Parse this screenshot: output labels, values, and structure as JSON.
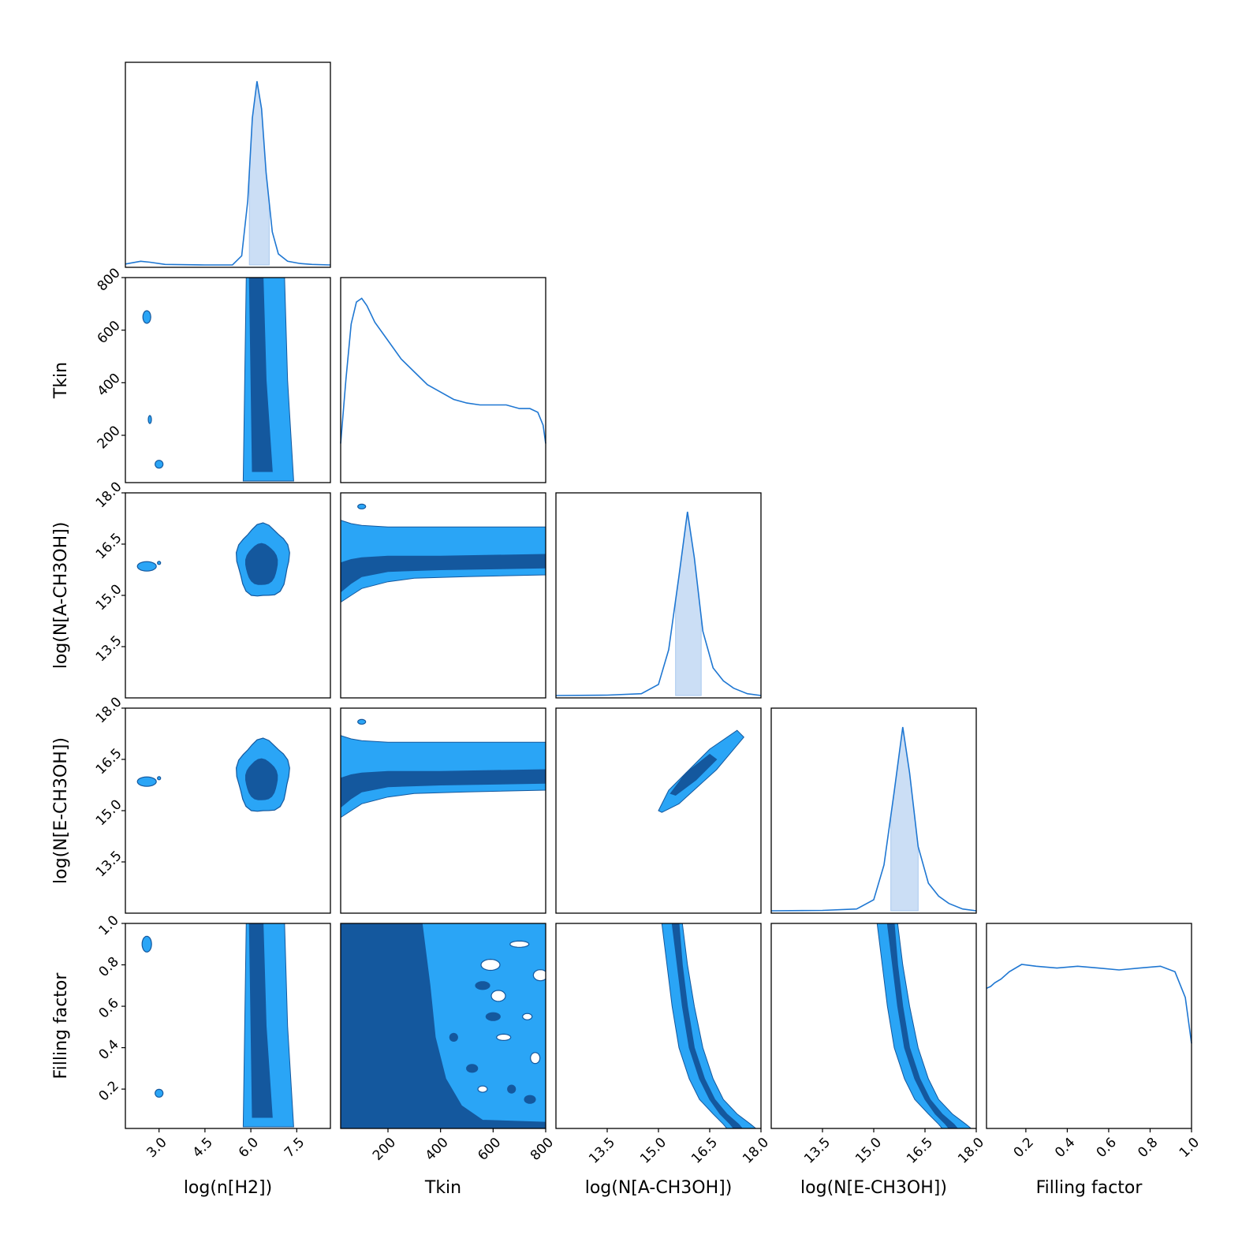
{
  "chart_data": {
    "type": "corner",
    "parameters": [
      {
        "key": "nh2",
        "label": "log(n[H2])",
        "range": [
          1.9,
          8.6
        ],
        "ticks": [
          "3.0",
          "4.5",
          "6.0",
          "7.5"
        ]
      },
      {
        "key": "tkin",
        "label": "Tkin",
        "range": [
          20,
          800
        ],
        "ticks": [
          "200",
          "400",
          "600",
          "800"
        ]
      },
      {
        "key": "na",
        "label": "log(N[A-CH3OH])",
        "range": [
          12.0,
          18.0
        ],
        "ticks": [
          "13.5",
          "15.0",
          "16.5",
          "18.0"
        ]
      },
      {
        "key": "ne",
        "label": "log(N[E-CH3OH])",
        "range": [
          12.0,
          18.0
        ],
        "ticks": [
          "13.5",
          "15.0",
          "16.5",
          "18.0"
        ]
      },
      {
        "key": "ff",
        "label": "Filling factor",
        "range": [
          0.01,
          1.0
        ],
        "ticks": [
          "0.2",
          "0.4",
          "0.6",
          "0.8",
          "1.0"
        ]
      }
    ],
    "marginals": {
      "nh2": {
        "shaded_interval": [
          5.95,
          6.6
        ],
        "curve": [
          [
            1.9,
            0.005
          ],
          [
            2.4,
            0.02
          ],
          [
            2.7,
            0.015
          ],
          [
            3.2,
            0.003
          ],
          [
            4.5,
            0.0
          ],
          [
            5.4,
            0.0
          ],
          [
            5.7,
            0.05
          ],
          [
            5.9,
            0.35
          ],
          [
            6.05,
            0.8
          ],
          [
            6.2,
            1.0
          ],
          [
            6.35,
            0.85
          ],
          [
            6.5,
            0.5
          ],
          [
            6.7,
            0.18
          ],
          [
            6.9,
            0.06
          ],
          [
            7.2,
            0.02
          ],
          [
            7.6,
            0.008
          ],
          [
            8.0,
            0.003
          ],
          [
            8.6,
            0.0
          ]
        ]
      },
      "tkin": {
        "curve": [
          [
            20,
            0.2
          ],
          [
            40,
            0.55
          ],
          [
            60,
            0.85
          ],
          [
            80,
            0.97
          ],
          [
            100,
            0.99
          ],
          [
            120,
            0.95
          ],
          [
            150,
            0.86
          ],
          [
            200,
            0.76
          ],
          [
            250,
            0.66
          ],
          [
            300,
            0.59
          ],
          [
            350,
            0.52
          ],
          [
            400,
            0.48
          ],
          [
            450,
            0.44
          ],
          [
            500,
            0.42
          ],
          [
            550,
            0.41
          ],
          [
            600,
            0.41
          ],
          [
            650,
            0.41
          ],
          [
            700,
            0.39
          ],
          [
            740,
            0.39
          ],
          [
            770,
            0.37
          ],
          [
            790,
            0.3
          ],
          [
            800,
            0.2
          ]
        ]
      },
      "na": {
        "shaded_interval": [
          15.5,
          16.25
        ],
        "curve": [
          [
            12.0,
            0.0
          ],
          [
            13.5,
            0.002
          ],
          [
            14.5,
            0.01
          ],
          [
            15.0,
            0.06
          ],
          [
            15.3,
            0.25
          ],
          [
            15.6,
            0.65
          ],
          [
            15.85,
            1.0
          ],
          [
            16.05,
            0.75
          ],
          [
            16.3,
            0.35
          ],
          [
            16.6,
            0.15
          ],
          [
            16.9,
            0.08
          ],
          [
            17.2,
            0.04
          ],
          [
            17.6,
            0.01
          ],
          [
            18.0,
            0.0
          ]
        ]
      },
      "ne": {
        "shaded_interval": [
          15.5,
          16.3
        ],
        "curve": [
          [
            12.0,
            0.0
          ],
          [
            13.5,
            0.002
          ],
          [
            14.5,
            0.01
          ],
          [
            15.0,
            0.06
          ],
          [
            15.3,
            0.25
          ],
          [
            15.6,
            0.65
          ],
          [
            15.85,
            1.0
          ],
          [
            16.05,
            0.75
          ],
          [
            16.3,
            0.35
          ],
          [
            16.6,
            0.15
          ],
          [
            16.9,
            0.08
          ],
          [
            17.2,
            0.04
          ],
          [
            17.6,
            0.01
          ],
          [
            18.0,
            0.0
          ]
        ]
      },
      "ff": {
        "curve": [
          [
            0.01,
            0.75
          ],
          [
            0.03,
            0.76
          ],
          [
            0.05,
            0.78
          ],
          [
            0.08,
            0.8
          ],
          [
            0.12,
            0.84
          ],
          [
            0.18,
            0.88
          ],
          [
            0.25,
            0.87
          ],
          [
            0.35,
            0.86
          ],
          [
            0.45,
            0.87
          ],
          [
            0.55,
            0.86
          ],
          [
            0.65,
            0.85
          ],
          [
            0.75,
            0.86
          ],
          [
            0.85,
            0.87
          ],
          [
            0.92,
            0.84
          ],
          [
            0.97,
            0.7
          ],
          [
            1.0,
            0.45
          ]
        ]
      }
    },
    "contour_levels": [
      "outer",
      "inner"
    ],
    "colors": {
      "outer": "#2aa5f6",
      "inner": "#14589e",
      "line": "#1f77d2",
      "shade": "#a9c8ef",
      "axis": "#000000"
    },
    "grid": false,
    "legend": "none"
  }
}
